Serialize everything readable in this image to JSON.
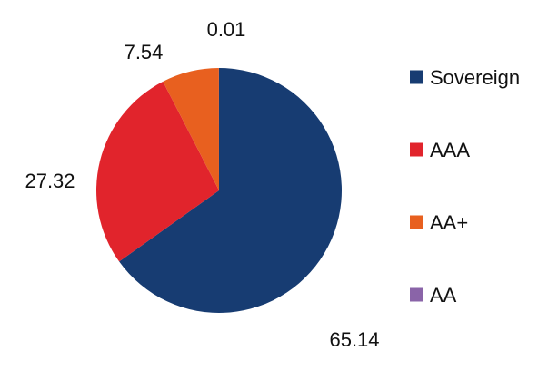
{
  "chart_data": {
    "type": "pie",
    "title": "",
    "categories": [
      "Sovereign",
      "AAA",
      "AA+",
      "AA"
    ],
    "values": [
      65.14,
      27.32,
      7.54,
      0.01
    ],
    "value_labels": [
      "65.14",
      "27.32",
      "7.54",
      "0.01"
    ],
    "colors": [
      "#173c72",
      "#e1242c",
      "#e8601f",
      "#8a64a8"
    ],
    "start": "12 o'clock",
    "direction": "clockwise",
    "legend": {
      "position": "right",
      "entries": [
        "Sovereign",
        "AAA",
        "AA+",
        "AA"
      ]
    }
  }
}
